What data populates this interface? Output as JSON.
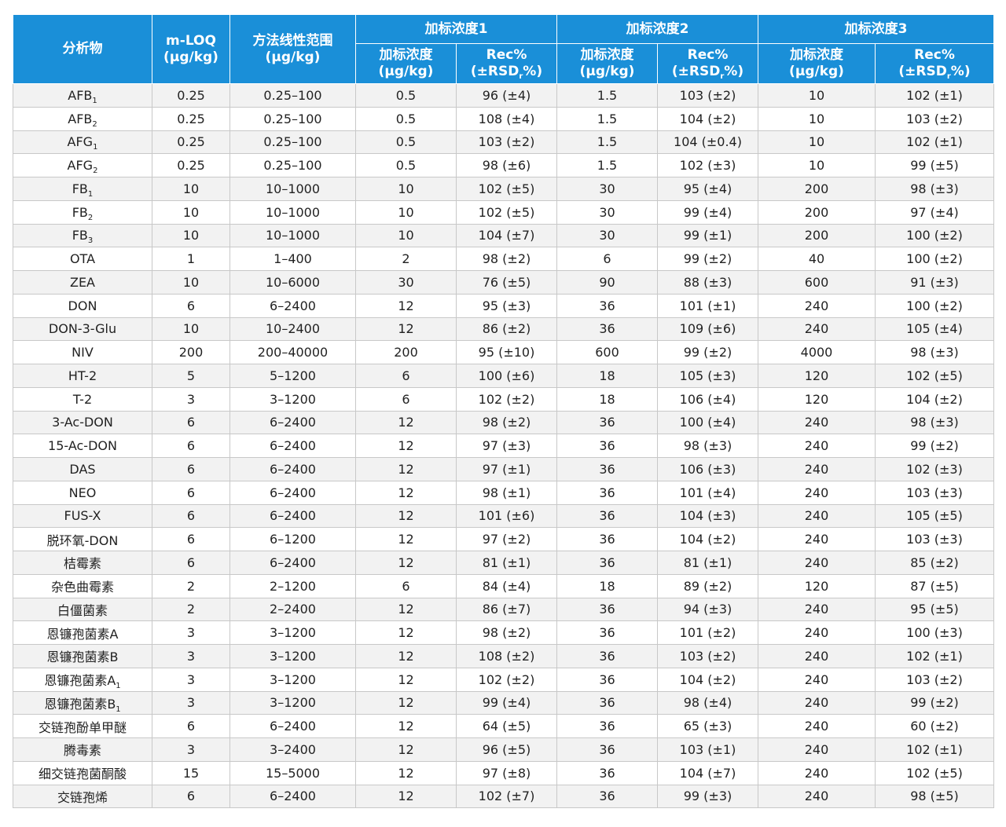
{
  "header": {
    "analyte": "分析物",
    "mloq_line1": "m-LOQ",
    "mloq_line2": "(μg/kg)",
    "range_line1": "方法线性范围",
    "range_line2": "(μg/kg)",
    "groups": [
      "加标浓度1",
      "加标浓度2",
      "加标浓度3"
    ],
    "spike_line1": "加标浓度",
    "spike_line2": "(μg/kg)",
    "rec_line1": "Rec%",
    "rec_line2_pre": "(±RSD",
    "rec_line2_sub": "r",
    "rec_line2_post": "%)"
  },
  "rows": [
    {
      "name": "AFB",
      "sub": "1",
      "mloq": "0.25",
      "range": "0.25–100",
      "s1": "0.5",
      "r1": "96 (±4)",
      "s2": "1.5",
      "r2": "103 (±2)",
      "s3": "10",
      "r3": "102 (±1)"
    },
    {
      "name": "AFB",
      "sub": "2",
      "mloq": "0.25",
      "range": "0.25–100",
      "s1": "0.5",
      "r1": "108 (±4)",
      "s2": "1.5",
      "r2": "104 (±2)",
      "s3": "10",
      "r3": "103 (±2)"
    },
    {
      "name": "AFG",
      "sub": "1",
      "mloq": "0.25",
      "range": "0.25–100",
      "s1": "0.5",
      "r1": "103 (±2)",
      "s2": "1.5",
      "r2": "104 (±0.4)",
      "s3": "10",
      "r3": "102 (±1)"
    },
    {
      "name": "AFG",
      "sub": "2",
      "mloq": "0.25",
      "range": "0.25–100",
      "s1": "0.5",
      "r1": "98 (±6)",
      "s2": "1.5",
      "r2": "102 (±3)",
      "s3": "10",
      "r3": "99 (±5)"
    },
    {
      "name": "FB",
      "sub": "1",
      "mloq": "10",
      "range": "10–1000",
      "s1": "10",
      "r1": "102 (±5)",
      "s2": "30",
      "r2": "95 (±4)",
      "s3": "200",
      "r3": "98 (±3)"
    },
    {
      "name": "FB",
      "sub": "2",
      "mloq": "10",
      "range": "10–1000",
      "s1": "10",
      "r1": "102 (±5)",
      "s2": "30",
      "r2": "99 (±4)",
      "s3": "200",
      "r3": "97 (±4)"
    },
    {
      "name": "FB",
      "sub": "3",
      "mloq": "10",
      "range": "10–1000",
      "s1": "10",
      "r1": "104 (±7)",
      "s2": "30",
      "r2": "99 (±1)",
      "s3": "200",
      "r3": "100 (±2)"
    },
    {
      "name": "OTA",
      "sub": "",
      "mloq": "1",
      "range": "1–400",
      "s1": "2",
      "r1": "98 (±2)",
      "s2": "6",
      "r2": "99 (±2)",
      "s3": "40",
      "r3": "100 (±2)"
    },
    {
      "name": "ZEA",
      "sub": "",
      "mloq": "10",
      "range": "10–6000",
      "s1": "30",
      "r1": "76 (±5)",
      "s2": "90",
      "r2": "88 (±3)",
      "s3": "600",
      "r3": "91 (±3)"
    },
    {
      "name": "DON",
      "sub": "",
      "mloq": "6",
      "range": "6–2400",
      "s1": "12",
      "r1": "95 (±3)",
      "s2": "36",
      "r2": "101 (±1)",
      "s3": "240",
      "r3": "100 (±2)"
    },
    {
      "name": "DON-3-Glu",
      "sub": "",
      "mloq": "10",
      "range": "10–2400",
      "s1": "12",
      "r1": "86 (±2)",
      "s2": "36",
      "r2": "109 (±6)",
      "s3": "240",
      "r3": "105 (±4)"
    },
    {
      "name": "NIV",
      "sub": "",
      "mloq": "200",
      "range": "200–40000",
      "s1": "200",
      "r1": "95 (±10)",
      "s2": "600",
      "r2": "99 (±2)",
      "s3": "4000",
      "r3": "98 (±3)"
    },
    {
      "name": "HT-2",
      "sub": "",
      "mloq": "5",
      "range": "5–1200",
      "s1": "6",
      "r1": "100 (±6)",
      "s2": "18",
      "r2": "105 (±3)",
      "s3": "120",
      "r3": "102 (±5)"
    },
    {
      "name": "T-2",
      "sub": "",
      "mloq": "3",
      "range": "3–1200",
      "s1": "6",
      "r1": "102 (±2)",
      "s2": "18",
      "r2": "106 (±4)",
      "s3": "120",
      "r3": "104 (±2)"
    },
    {
      "name": "3-Ac-DON",
      "sub": "",
      "mloq": "6",
      "range": "6–2400",
      "s1": "12",
      "r1": "98 (±2)",
      "s2": "36",
      "r2": "100 (±4)",
      "s3": "240",
      "r3": "98 (±3)"
    },
    {
      "name": "15-Ac-DON",
      "sub": "",
      "mloq": "6",
      "range": "6–2400",
      "s1": "12",
      "r1": "97 (±3)",
      "s2": "36",
      "r2": "98 (±3)",
      "s3": "240",
      "r3": "99 (±2)"
    },
    {
      "name": "DAS",
      "sub": "",
      "mloq": "6",
      "range": "6–2400",
      "s1": "12",
      "r1": "97 (±1)",
      "s2": "36",
      "r2": "106 (±3)",
      "s3": "240",
      "r3": "102 (±3)"
    },
    {
      "name": "NEO",
      "sub": "",
      "mloq": "6",
      "range": "6–2400",
      "s1": "12",
      "r1": "98 (±1)",
      "s2": "36",
      "r2": "101 (±4)",
      "s3": "240",
      "r3": "103 (±3)"
    },
    {
      "name": "FUS-X",
      "sub": "",
      "mloq": "6",
      "range": "6–2400",
      "s1": "12",
      "r1": "101 (±6)",
      "s2": "36",
      "r2": "104 (±3)",
      "s3": "240",
      "r3": "105 (±5)"
    },
    {
      "name": "脱环氧-DON",
      "sub": "",
      "mloq": "6",
      "range": "6–1200",
      "s1": "12",
      "r1": "97 (±2)",
      "s2": "36",
      "r2": "104 (±2)",
      "s3": "240",
      "r3": "103 (±3)"
    },
    {
      "name": "桔霉素",
      "sub": "",
      "mloq": "6",
      "range": "6–2400",
      "s1": "12",
      "r1": "81 (±1)",
      "s2": "36",
      "r2": "81 (±1)",
      "s3": "240",
      "r3": "85 (±2)"
    },
    {
      "name": "杂色曲霉素",
      "sub": "",
      "mloq": "2",
      "range": "2–1200",
      "s1": "6",
      "r1": "84 (±4)",
      "s2": "18",
      "r2": "89 (±2)",
      "s3": "120",
      "r3": "87 (±5)"
    },
    {
      "name": "白僵菌素",
      "sub": "",
      "mloq": "2",
      "range": "2–2400",
      "s1": "12",
      "r1": "86 (±7)",
      "s2": "36",
      "r2": "94 (±3)",
      "s3": "240",
      "r3": "95 (±5)"
    },
    {
      "name": "恩镰孢菌素A",
      "sub": "",
      "mloq": "3",
      "range": "3–1200",
      "s1": "12",
      "r1": "98 (±2)",
      "s2": "36",
      "r2": "101 (±2)",
      "s3": "240",
      "r3": "100 (±3)"
    },
    {
      "name": "恩镰孢菌素B",
      "sub": "",
      "mloq": "3",
      "range": "3–1200",
      "s1": "12",
      "r1": "108 (±2)",
      "s2": "36",
      "r2": "103 (±2)",
      "s3": "240",
      "r3": "102 (±1)"
    },
    {
      "name": "恩镰孢菌素A",
      "sub": "1",
      "mloq": "3",
      "range": "3–1200",
      "s1": "12",
      "r1": "102 (±2)",
      "s2": "36",
      "r2": "104 (±2)",
      "s3": "240",
      "r3": "103 (±2)"
    },
    {
      "name": "恩镰孢菌素B",
      "sub": "1",
      "mloq": "3",
      "range": "3–1200",
      "s1": "12",
      "r1": "99 (±4)",
      "s2": "36",
      "r2": "98 (±4)",
      "s3": "240",
      "r3": "99 (±2)"
    },
    {
      "name": "交链孢酚单甲醚",
      "sub": "",
      "mloq": "6",
      "range": "6–2400",
      "s1": "12",
      "r1": "64 (±5)",
      "s2": "36",
      "r2": "65 (±3)",
      "s3": "240",
      "r3": "60 (±2)"
    },
    {
      "name": "腾毒素",
      "sub": "",
      "mloq": "3",
      "range": "3–2400",
      "s1": "12",
      "r1": "96 (±5)",
      "s2": "36",
      "r2": "103 (±1)",
      "s3": "240",
      "r3": "102 (±1)"
    },
    {
      "name": "细交链孢菌酮酸",
      "sub": "",
      "mloq": "15",
      "range": "15–5000",
      "s1": "12",
      "r1": "97 (±8)",
      "s2": "36",
      "r2": "104 (±7)",
      "s3": "240",
      "r3": "102 (±5)"
    },
    {
      "name": "交链孢烯",
      "sub": "",
      "mloq": "6",
      "range": "6–2400",
      "s1": "12",
      "r1": "102 (±7)",
      "s2": "36",
      "r2": "99 (±3)",
      "s3": "240",
      "r3": "98 (±5)"
    }
  ],
  "colors": {
    "header_bg": "#1a8fd8",
    "header_text": "#ffffff",
    "row_alt_bg": "#f2f2f2",
    "grid": "#c8c8c8"
  }
}
